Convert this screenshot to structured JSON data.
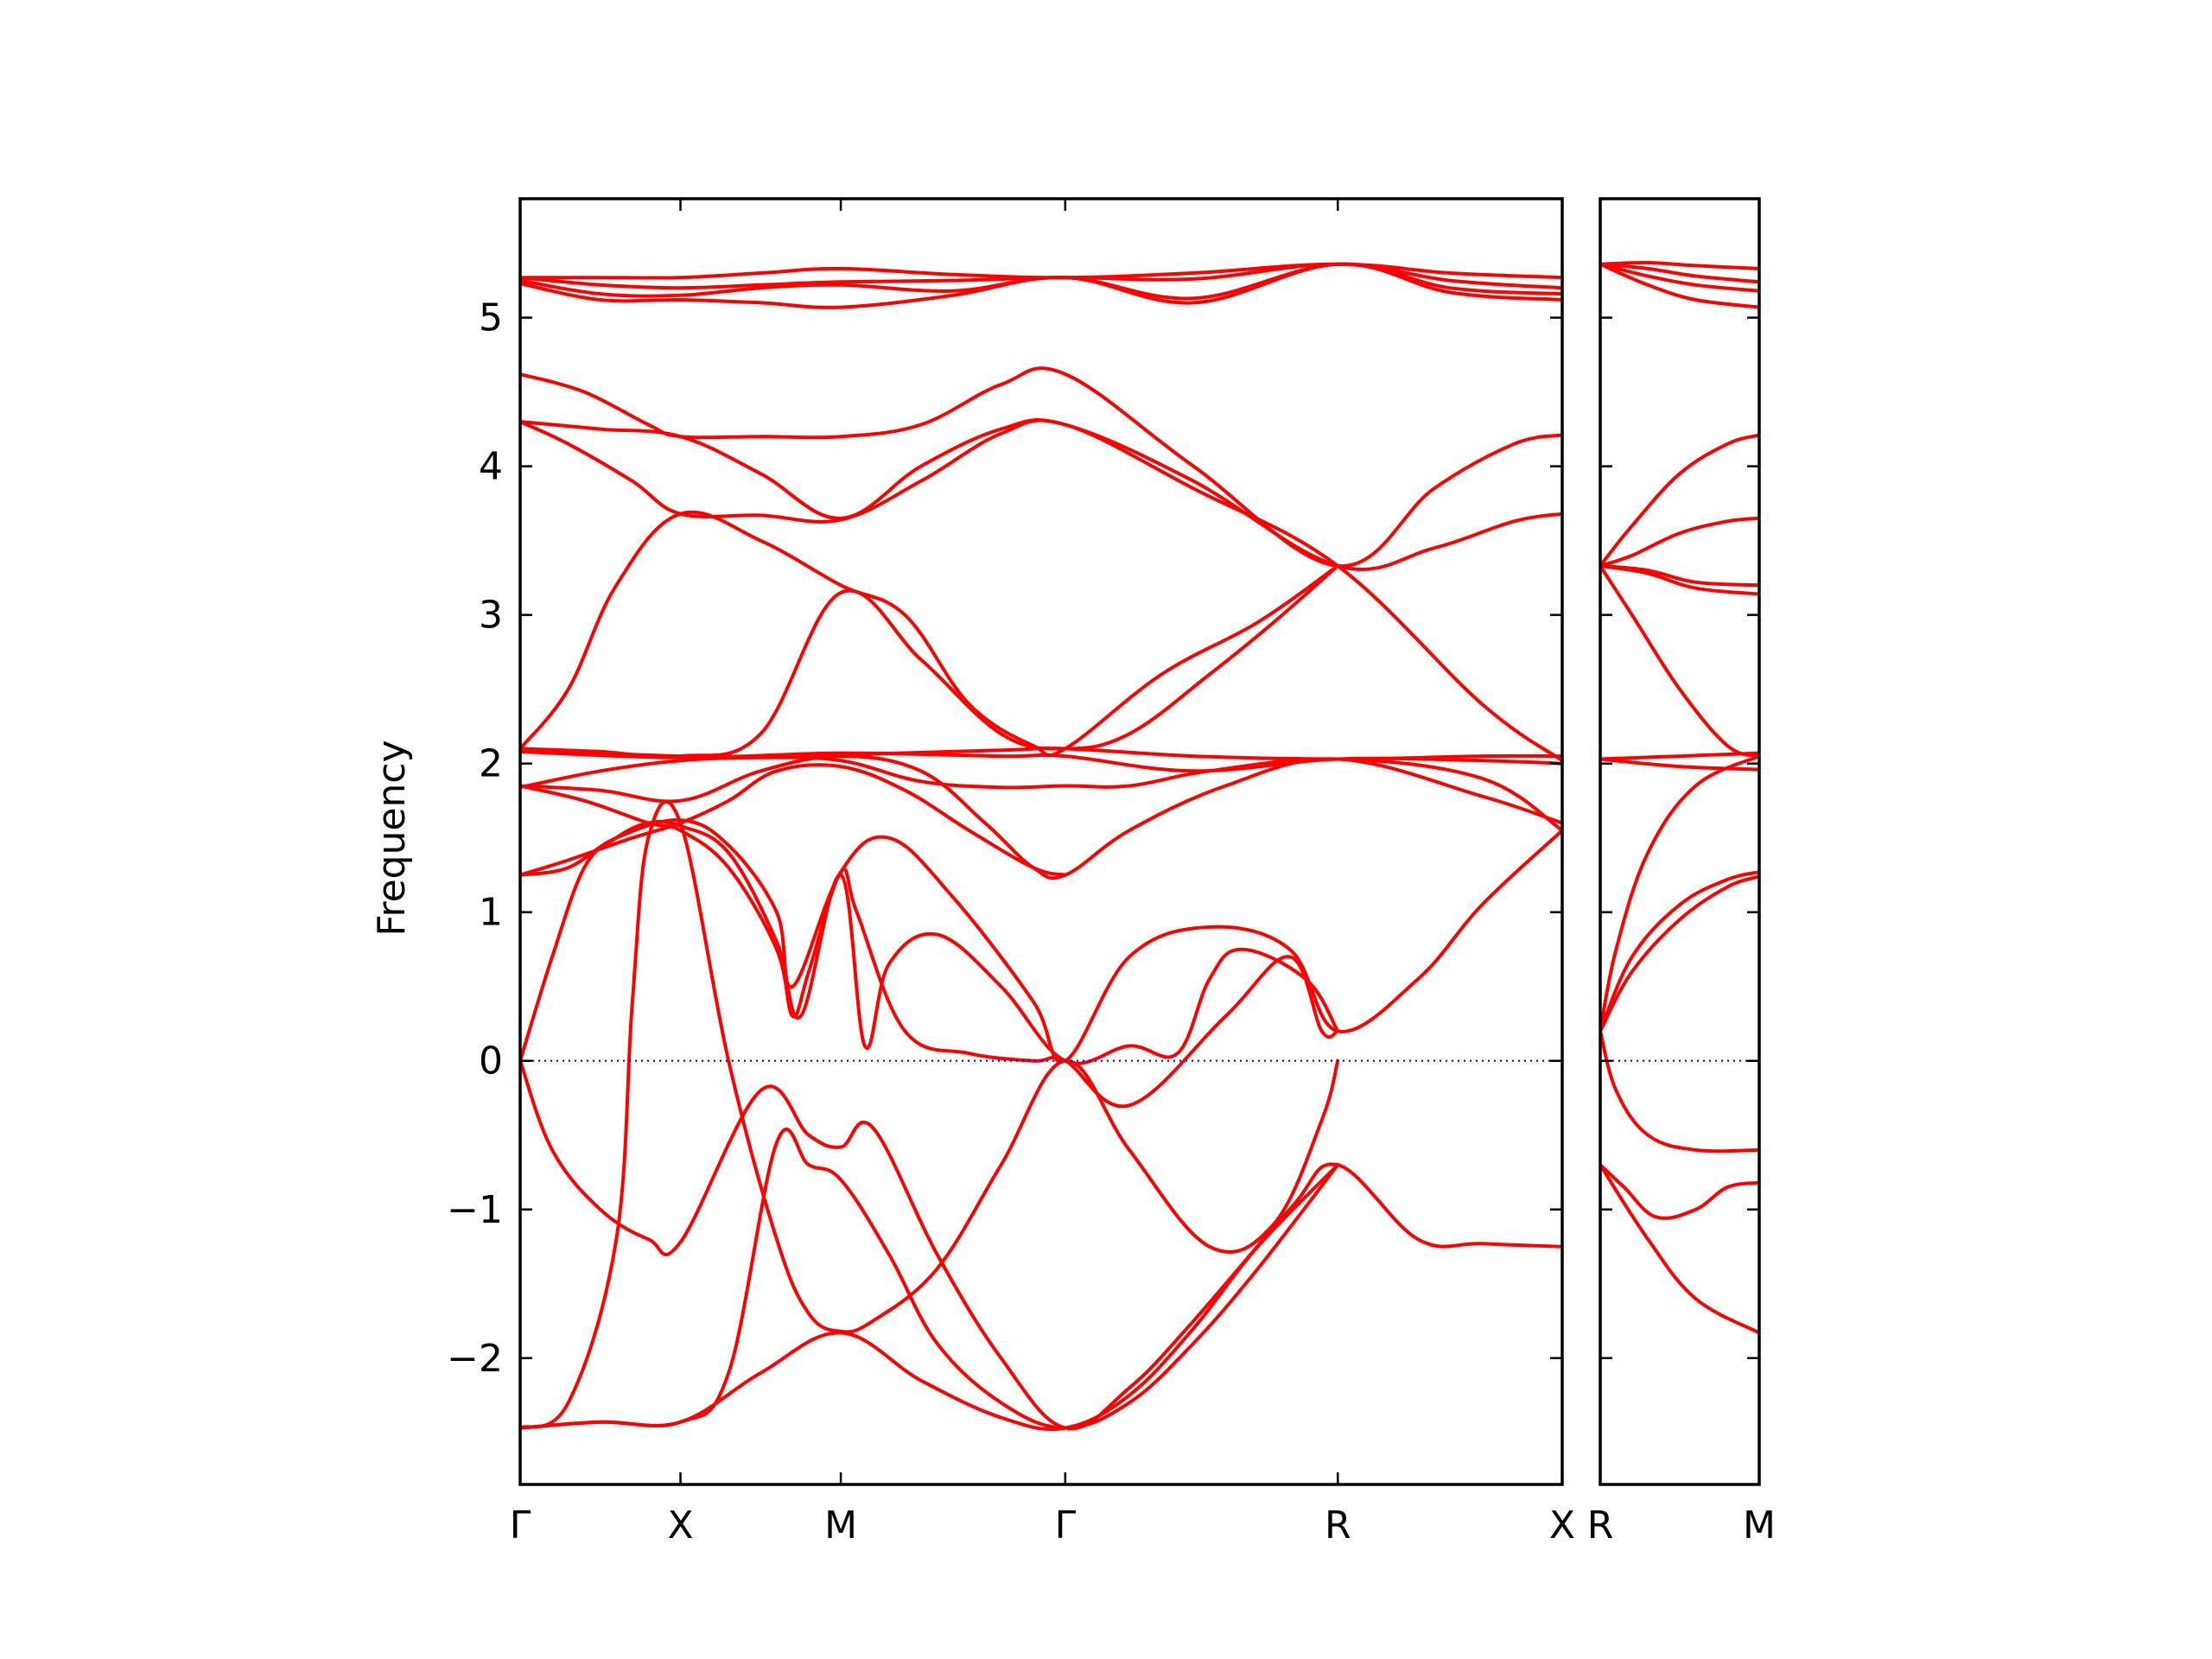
{
  "chart_data": {
    "type": "line",
    "ylabel": "Frequency",
    "ylim": [
      -2.85,
      5.8
    ],
    "yticks": [
      -2,
      -1,
      0,
      1,
      2,
      3,
      4,
      5
    ],
    "yticklabels": [
      "−2",
      "−1",
      "0",
      "1",
      "2",
      "3",
      "4",
      "5"
    ],
    "grid": false,
    "colors": {
      "bands": "#ff0000",
      "zero_line": "#0000ff"
    },
    "panels": [
      {
        "name": "main",
        "xlim": [
          0,
          6.5
        ],
        "xticks": [
          0,
          1,
          2,
          3.4,
          5.1,
          6.5
        ],
        "xticklabels": [
          "Γ",
          "X",
          "M",
          "Γ",
          "R",
          "X"
        ],
        "series": [
          {
            "x": [
              0,
              0.5,
              1,
              1.5,
              2,
              2.7,
              3.4,
              4.2,
              5.1,
              5.8,
              6.5
            ],
            "y": [
              5.27,
              5.27,
              5.27,
              5.3,
              5.33,
              5.29,
              5.27,
              5.3,
              5.36,
              5.3,
              5.27
            ]
          },
          {
            "x": [
              0,
              0.5,
              1,
              1.5,
              2,
              2.7,
              3.4,
              4.2,
              5.1,
              5.8,
              6.5
            ],
            "y": [
              5.27,
              5.22,
              5.2,
              5.22,
              5.24,
              5.25,
              5.27,
              5.26,
              5.36,
              5.25,
              5.2
            ]
          },
          {
            "x": [
              0,
              0.5,
              1,
              1.5,
              2,
              2.7,
              3.4,
              4.2,
              5.1,
              5.8,
              6.5
            ],
            "y": [
              5.25,
              5.16,
              5.15,
              5.2,
              5.22,
              5.18,
              5.27,
              5.13,
              5.36,
              5.2,
              5.16
            ]
          },
          {
            "x": [
              0,
              0.5,
              1,
              1.5,
              2,
              2.7,
              3.4,
              4.2,
              5.1,
              5.8,
              6.5
            ],
            "y": [
              5.23,
              5.12,
              5.12,
              5.1,
              5.07,
              5.15,
              5.27,
              5.1,
              5.36,
              5.17,
              5.12
            ]
          },
          {
            "x": [
              0,
              0.4,
              0.8,
              1,
              1.5,
              2,
              2.5,
              3,
              3.4,
              4.2,
              5.1,
              5.7,
              6.2,
              6.5
            ],
            "y": [
              4.62,
              4.5,
              4.28,
              4.2,
              4.2,
              4.2,
              4.28,
              4.55,
              4.62,
              4.0,
              3.33,
              3.85,
              4.15,
              4.21
            ]
          },
          {
            "x": [
              0,
              0.5,
              1,
              1.5,
              2,
              2.5,
              3,
              3.4,
              4.2,
              5.1,
              5.7,
              6.2,
              6.5
            ],
            "y": [
              4.3,
              4.25,
              4.2,
              3.95,
              3.65,
              4.0,
              4.25,
              4.28,
              3.9,
              3.33,
              3.45,
              3.63,
              3.68
            ]
          },
          {
            "x": [
              0,
              0.3,
              0.7,
              1,
              1.5,
              2,
              2.5,
              3,
              3.4,
              4.2,
              5.1,
              6.0,
              6.5
            ],
            "y": [
              4.3,
              4.15,
              3.9,
              3.68,
              3.67,
              3.64,
              3.9,
              4.22,
              4.28,
              3.85,
              3.33,
              2.4,
              2.02
            ]
          },
          {
            "x": [
              0,
              0.3,
              0.6,
              1,
              1.5,
              2,
              2.4,
              2.8,
              3.2,
              3.4,
              4.0,
              4.6,
              5.1
            ],
            "y": [
              2.1,
              2.5,
              3.2,
              3.68,
              3.5,
              3.2,
              3.0,
              2.4,
              2.12,
              2.1,
              2.6,
              2.95,
              3.33
            ]
          },
          {
            "x": [
              0,
              0.5,
              1,
              1.5,
              2,
              2.5,
              3,
              3.4,
              3.8,
              4.3,
              4.7,
              5.1
            ],
            "y": [
              2.1,
              2.08,
              2.05,
              2.2,
              3.15,
              2.7,
              2.2,
              2.1,
              2.2,
              2.6,
              2.95,
              3.33
            ]
          },
          {
            "x": [
              0,
              1,
              2,
              3,
              3.4,
              4.2,
              5.1,
              6,
              6.5
            ],
            "y": [
              2.1,
              2.05,
              2.06,
              2.09,
              2.1,
              2.05,
              2.03,
              2.05,
              2.05
            ]
          },
          {
            "x": [
              0,
              1,
              2,
              3,
              3.4,
              4.2,
              5.1,
              6,
              6.5
            ],
            "y": [
              2.08,
              2.04,
              2.07,
              2.05,
              2.05,
              1.95,
              2.03,
              2.02,
              2.0
            ]
          },
          {
            "x": [
              0,
              0.5,
              1,
              1.5,
              2,
              2.5,
              2.9,
              3.2,
              3.4,
              3.8,
              4.4,
              5.1,
              6.0,
              6.5
            ],
            "y": [
              1.85,
              1.82,
              1.75,
              1.95,
              2.05,
              1.95,
              1.6,
              1.3,
              1.25,
              1.55,
              1.85,
              2.03,
              1.78,
              1.6
            ]
          },
          {
            "x": [
              0,
              0.5,
              1,
              1.5,
              2,
              2.5,
              3,
              3.4,
              3.8,
              4.3,
              5.1,
              6.0,
              6.5
            ],
            "y": [
              1.84,
              1.95,
              2.02,
              2.04,
              2.02,
              1.88,
              1.84,
              1.85,
              1.85,
              1.95,
              2.03,
              1.9,
              1.55
            ]
          },
          {
            "x": [
              0,
              0.3,
              0.7,
              1,
              1.3,
              1.6,
              2,
              2.4,
              2.8,
              3.2,
              3.4
            ],
            "y": [
              1.25,
              1.35,
              1.5,
              1.6,
              1.75,
              1.95,
              1.98,
              1.82,
              1.55,
              1.3,
              1.25
            ]
          },
          {
            "x": [
              0,
              0.3,
              0.6,
              1,
              1.3,
              1.6,
              1.7,
              2,
              2.3,
              2.7,
              3.2,
              3.4,
              3.8,
              4.3,
              4.8,
              5.1,
              5.6,
              6.0,
              6.5
            ],
            "y": [
              1.25,
              1.3,
              1.5,
              1.62,
              1.45,
              1.0,
              0.5,
              1.27,
              1.5,
              1.1,
              0.4,
              0.0,
              0.7,
              0.9,
              0.75,
              0.2,
              0.55,
              1.05,
              1.55
            ]
          },
          {
            "x": [
              0,
              0.4,
              0.8,
              1,
              1.3,
              1.6,
              1.7,
              1.8,
              2,
              2.1,
              2.4,
              2.8,
              3.2,
              3.4,
              3.8,
              4.4,
              4.8,
              5.0,
              5.1
            ],
            "y": [
              1.85,
              1.75,
              1.6,
              1.55,
              1.3,
              0.75,
              0.3,
              0.6,
              1.27,
              1.0,
              0.2,
              0.05,
              0.0,
              0.0,
              -0.3,
              0.3,
              0.7,
              0.2,
              0.2
            ]
          },
          {
            "x": [
              0,
              0.2,
              0.4,
              0.6,
              0.8,
              1,
              1.3,
              1.6,
              1.75,
              2,
              2.15,
              2.3,
              2.6,
              3.0,
              3.4,
              3.8,
              4.1,
              4.3,
              4.5,
              4.9,
              5.1
            ],
            "y": [
              0,
              0.7,
              1.3,
              1.5,
              1.6,
              1.58,
              1.4,
              0.8,
              0.3,
              1.25,
              0.1,
              0.65,
              0.85,
              0.5,
              0.0,
              0.1,
              0.05,
              0.55,
              0.75,
              0.55,
              0.2
            ]
          },
          {
            "x": [
              0,
              0.2,
              0.5,
              0.8,
              1,
              1.5,
              1.8,
              2,
              2.2,
              2.6,
              3.0,
              3.4,
              3.8,
              4.2,
              4.8,
              5.1,
              5.6,
              6.0,
              6.5
            ],
            "y": [
              0,
              -0.6,
              -1.0,
              -1.2,
              -1.22,
              -0.2,
              -0.5,
              -0.58,
              -0.45,
              -1.3,
              -2.0,
              -2.47,
              -2.2,
              -1.75,
              -1.0,
              -0.7,
              -1.2,
              -1.23,
              -1.25
            ]
          },
          {
            "x": [
              0,
              0.3,
              0.6,
              0.7,
              0.8,
              1,
              1.3,
              1.6,
              1.8,
              2,
              2.2,
              2.6,
              3.0,
              3.4,
              3.8,
              4.3,
              4.7,
              5.0,
              5.1
            ],
            "y": [
              -2.47,
              -2.3,
              -1.2,
              0.4,
              1.5,
              1.6,
              0.0,
              -1.2,
              -1.7,
              -1.82,
              -1.75,
              -1.4,
              -0.7,
              0,
              -0.6,
              -1.25,
              -1.1,
              -0.4,
              0.0
            ]
          },
          {
            "x": [
              0,
              0.5,
              1,
              1.5,
              2,
              2.5,
              3,
              3.4,
              3.8,
              4.2,
              4.6,
              5.1
            ],
            "y": [
              -2.47,
              -2.43,
              -2.43,
              -2.1,
              -1.83,
              -2.15,
              -2.4,
              -2.47,
              -2.25,
              -1.8,
              -1.25,
              -0.7
            ]
          },
          {
            "x": [
              0,
              0.5,
              1,
              1.3,
              1.6,
              1.8,
              2,
              2.3,
              2.6,
              3.0,
              3.4,
              3.8,
              4.2,
              4.6,
              5.1
            ],
            "y": [
              -2.47,
              -2.43,
              -2.43,
              -2.1,
              -0.55,
              -0.7,
              -0.8,
              -1.3,
              -1.9,
              -2.3,
              -2.47,
              -2.3,
              -1.9,
              -1.4,
              -0.7
            ]
          },
          {
            "x": [
              0,
              1,
              2,
              3,
              3.4,
              4.2,
              5.1,
              6,
              6.5
            ],
            "y": [
              0,
              0,
              0,
              0,
              0,
              0,
              0,
              0,
              0
            ],
            "zero": true
          }
        ]
      },
      {
        "name": "side",
        "xlim": [
          0,
          1
        ],
        "xticks": [
          0,
          1
        ],
        "xticklabels": [
          "R",
          "M"
        ],
        "series": [
          {
            "x": [
              0,
              0.3,
              0.6,
              1
            ],
            "y": [
              5.36,
              5.37,
              5.35,
              5.33
            ]
          },
          {
            "x": [
              0,
              0.3,
              0.6,
              1
            ],
            "y": [
              5.36,
              5.33,
              5.28,
              5.24
            ]
          },
          {
            "x": [
              0,
              0.3,
              0.6,
              1
            ],
            "y": [
              5.36,
              5.28,
              5.22,
              5.18
            ]
          },
          {
            "x": [
              0,
              0.3,
              0.6,
              1
            ],
            "y": [
              5.36,
              5.22,
              5.12,
              5.07
            ]
          },
          {
            "x": [
              0,
              0.2,
              0.5,
              0.8,
              1
            ],
            "y": [
              3.33,
              3.6,
              3.95,
              4.15,
              4.21
            ]
          },
          {
            "x": [
              0,
              0.2,
              0.5,
              0.8,
              1
            ],
            "y": [
              3.33,
              3.4,
              3.55,
              3.63,
              3.65
            ]
          },
          {
            "x": [
              0,
              0.3,
              0.6,
              1
            ],
            "y": [
              3.33,
              3.3,
              3.22,
              3.2
            ]
          },
          {
            "x": [
              0,
              0.3,
              0.6,
              1
            ],
            "y": [
              3.33,
              3.28,
              3.18,
              3.14
            ]
          },
          {
            "x": [
              0,
              0.2,
              0.5,
              0.8,
              1
            ],
            "y": [
              3.33,
              3.0,
              2.5,
              2.12,
              2.05
            ]
          },
          {
            "x": [
              0,
              0.5,
              1
            ],
            "y": [
              2.03,
              2.05,
              2.07
            ]
          },
          {
            "x": [
              0,
              0.5,
              1
            ],
            "y": [
              2.03,
              1.98,
              1.96
            ]
          },
          {
            "x": [
              0,
              0.1,
              0.3,
              0.6,
              1
            ],
            "y": [
              0.2,
              0.75,
              1.4,
              1.85,
              2.05
            ]
          },
          {
            "x": [
              0,
              0.2,
              0.5,
              0.8,
              1
            ],
            "y": [
              0.2,
              0.7,
              1.05,
              1.22,
              1.27
            ]
          },
          {
            "x": [
              0,
              0.2,
              0.5,
              0.8,
              1
            ],
            "y": [
              0.2,
              0.6,
              0.95,
              1.17,
              1.24
            ]
          },
          {
            "x": [
              0,
              0.1,
              0.3,
              0.6,
              1
            ],
            "y": [
              0.2,
              -0.2,
              -0.5,
              -0.6,
              -0.6
            ]
          },
          {
            "x": [
              0,
              0.15,
              0.35,
              0.6,
              0.8,
              1
            ],
            "y": [
              -0.7,
              -0.85,
              -1.05,
              -1.0,
              -0.85,
              -0.82
            ]
          },
          {
            "x": [
              0,
              0.3,
              0.6,
              1
            ],
            "y": [
              -0.7,
              -1.2,
              -1.6,
              -1.83
            ]
          },
          {
            "x": [
              0,
              1
            ],
            "y": [
              0,
              0
            ],
            "zero": true
          }
        ]
      }
    ]
  }
}
